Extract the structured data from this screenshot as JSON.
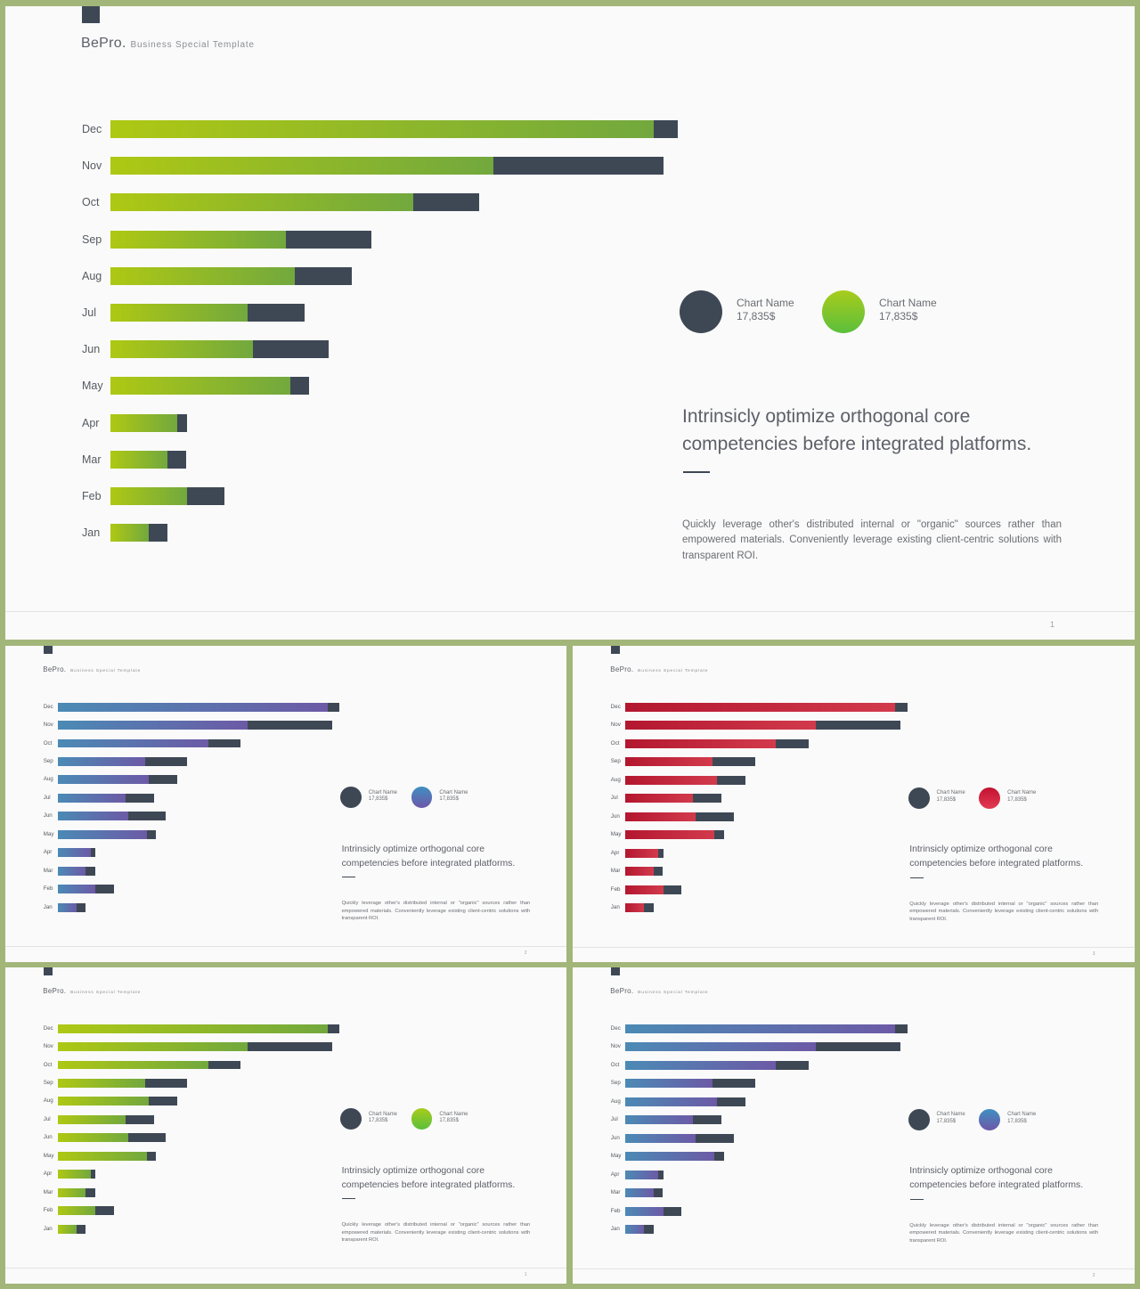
{
  "brand": {
    "name": "BePro.",
    "tagline": "Business  Special  Template"
  },
  "chart_data": {
    "type": "bar",
    "orientation": "horizontal",
    "stacked": true,
    "categories": [
      "Dec",
      "Nov",
      "Oct",
      "Sep",
      "Aug",
      "Jul",
      "Jun",
      "May",
      "Apr",
      "Mar",
      "Feb",
      "Jan"
    ],
    "series": [
      {
        "values": [
          610,
          430,
          340,
          197,
          207,
          154,
          160,
          202,
          75,
          64,
          86,
          43
        ]
      },
      {
        "values": [
          27,
          191,
          74,
          96,
          64,
          64,
          85,
          21,
          11,
          21,
          42,
          21
        ]
      }
    ]
  },
  "legend": [
    {
      "name": "Chart Name",
      "value": "17,835$"
    },
    {
      "name": "Chart Name",
      "value": "17,835$"
    }
  ],
  "headline": {
    "line1": "Intrinsicly optimize orthogonal core",
    "line2": "competencies before integrated platforms."
  },
  "body": "Quickly leverage other's distributed internal or \"organic\" sources rather than empowered materials. Conveniently leverage existing client-centric solutions with transparent ROI.",
  "slides": [
    {
      "page": "1",
      "theme": "green"
    },
    {
      "page": "2",
      "theme": "blue"
    },
    {
      "page": "3",
      "theme": "red"
    },
    {
      "page": "1",
      "theme": "green"
    },
    {
      "page": "2",
      "theme": "blue"
    }
  ],
  "themes": {
    "green": {
      "start": "#aec813",
      "end": "#72a83e",
      "dot_start": "#a8cc1c",
      "dot_end": "#5bbf3c"
    },
    "blue": {
      "start": "#4b8ab5",
      "end": "#6c5aa6",
      "dot_start": "#3f8fc2",
      "dot_end": "#6e57a8"
    },
    "red": {
      "start": "#b3172f",
      "end": "#d23a4c",
      "dot_start": "#c21230",
      "dot_end": "#e23a54"
    }
  },
  "colors": {
    "dark": "#3e4855",
    "frame": "#a3b67a",
    "slide_bg": "#fafafa"
  }
}
